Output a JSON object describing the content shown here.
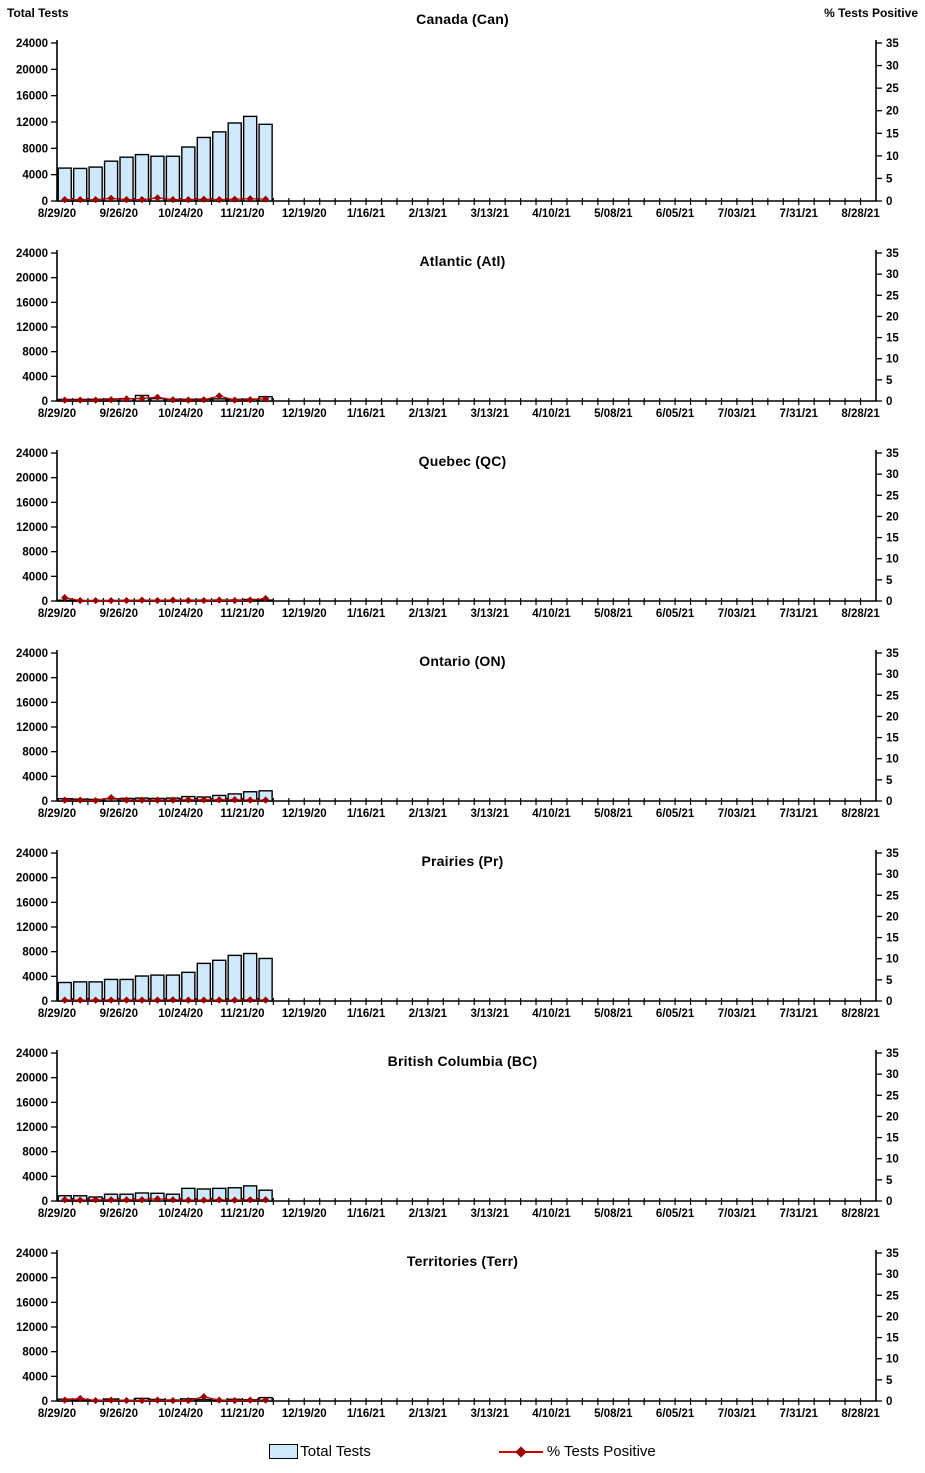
{
  "axes": {
    "left_label": "Total Tests",
    "right_label": "% Tests Positive",
    "left_ticks": [
      0,
      4000,
      8000,
      12000,
      16000,
      20000,
      24000
    ],
    "right_ticks": [
      0,
      5,
      10,
      15,
      20,
      25,
      30,
      35
    ],
    "left_max": 24000,
    "right_max": 35,
    "x_tick_labels": [
      "8/29/20",
      "9/26/20",
      "10/24/20",
      "11/21/20",
      "12/19/20",
      "1/16/21",
      "2/13/21",
      "3/13/21",
      "4/10/21",
      "5/08/21",
      "6/05/21",
      "7/03/21",
      "7/31/21",
      "8/28/21"
    ],
    "minor_tick_interval_weeks": 1,
    "label_interval_weeks": 4,
    "total_weeks_span": 53,
    "grid": "off"
  },
  "legend": {
    "total_tests": "Total Tests",
    "pct_positive": "% Tests Positive",
    "position": "bottom-center"
  },
  "colors": {
    "bar_fill": "#CDE9FA",
    "bar_border": "#000000",
    "line": "#CC0000",
    "marker": "#A00000",
    "axis": "#000000",
    "text": "#000000"
  },
  "chart_data": [
    {
      "type": "bar+line",
      "title": "Canada (Can)",
      "xlabel": "",
      "ylabel_left": "Total Tests",
      "ylabel_right": "% Tests Positive",
      "ylim_left": [
        0,
        24000
      ],
      "ylim_right": [
        0,
        35
      ],
      "categories": [
        "8/29/20",
        "9/05/20",
        "9/12/20",
        "9/19/20",
        "9/26/20",
        "10/03/20",
        "10/10/20",
        "10/17/20",
        "10/24/20",
        "10/31/20",
        "11/07/20",
        "11/14/20",
        "11/21/20",
        "11/28/20"
      ],
      "series": [
        {
          "name": "Total Tests",
          "axis": "left",
          "style": "bar",
          "values": [
            5000,
            4950,
            5150,
            6050,
            6650,
            7050,
            6800,
            6800,
            8200,
            9650,
            10500,
            11850,
            12850,
            11650
          ]
        },
        {
          "name": "% Tests Positive",
          "axis": "right",
          "style": "line-diamond",
          "values": [
            0.3,
            0.3,
            0.3,
            0.6,
            0.3,
            0.3,
            0.7,
            0.3,
            0.3,
            0.4,
            0.3,
            0.4,
            0.5,
            0.4
          ]
        }
      ]
    },
    {
      "type": "bar+line",
      "title": "Atlantic (Atl)",
      "xlabel": "",
      "ylabel_left": "Total Tests",
      "ylabel_right": "% Tests Positive",
      "ylim_left": [
        0,
        24000
      ],
      "ylim_right": [
        0,
        35
      ],
      "categories": [
        "8/29/20",
        "9/05/20",
        "9/12/20",
        "9/19/20",
        "9/26/20",
        "10/03/20",
        "10/10/20",
        "10/17/20",
        "10/24/20",
        "10/31/20",
        "11/07/20",
        "11/14/20",
        "11/21/20",
        "11/28/20"
      ],
      "series": [
        {
          "name": "Total Tests",
          "axis": "left",
          "style": "bar",
          "values": [
            250,
            250,
            280,
            320,
            380,
            900,
            400,
            300,
            280,
            300,
            350,
            280,
            300,
            700
          ]
        },
        {
          "name": "% Tests Positive",
          "axis": "right",
          "style": "line-diamond",
          "values": [
            0.2,
            0.2,
            0.2,
            0.3,
            0.5,
            0.6,
            0.9,
            0.3,
            0.2,
            0.3,
            1.2,
            0.2,
            0.3,
            0.5
          ]
        }
      ]
    },
    {
      "type": "bar+line",
      "title": "Quebec (QC)",
      "xlabel": "",
      "ylabel_left": "Total Tests",
      "ylabel_right": "% Tests Positive",
      "ylim_left": [
        0,
        24000
      ],
      "ylim_right": [
        0,
        35
      ],
      "categories": [
        "8/29/20",
        "9/05/20",
        "9/12/20",
        "9/19/20",
        "9/26/20",
        "10/03/20",
        "10/10/20",
        "10/17/20",
        "10/24/20",
        "10/31/20",
        "11/07/20",
        "11/14/20",
        "11/21/20",
        "11/28/20"
      ],
      "series": [
        {
          "name": "Total Tests",
          "axis": "left",
          "style": "bar",
          "values": [
            120,
            80,
            80,
            80,
            100,
            100,
            100,
            120,
            120,
            130,
            150,
            150,
            250,
            150
          ]
        },
        {
          "name": "% Tests Positive",
          "axis": "right",
          "style": "line-diamond",
          "values": [
            0.8,
            0.1,
            0.1,
            0.1,
            0.1,
            0.2,
            0.1,
            0.2,
            0.1,
            0.1,
            0.2,
            0.1,
            0.2,
            0.6
          ]
        }
      ]
    },
    {
      "type": "bar+line",
      "title": "Ontario (ON)",
      "xlabel": "",
      "ylabel_left": "Total Tests",
      "ylabel_right": "% Tests Positive",
      "ylim_left": [
        0,
        24000
      ],
      "ylim_right": [
        0,
        35
      ],
      "categories": [
        "8/29/20",
        "9/05/20",
        "9/12/20",
        "9/19/20",
        "9/26/20",
        "10/03/20",
        "10/10/20",
        "10/17/20",
        "10/24/20",
        "10/31/20",
        "11/07/20",
        "11/14/20",
        "11/21/20",
        "11/28/20"
      ],
      "series": [
        {
          "name": "Total Tests",
          "axis": "left",
          "style": "bar",
          "values": [
            380,
            300,
            260,
            350,
            420,
            470,
            420,
            470,
            720,
            650,
            900,
            1150,
            1500,
            1650
          ]
        },
        {
          "name": "% Tests Positive",
          "axis": "right",
          "style": "line-diamond",
          "values": [
            0.2,
            0.2,
            0.1,
            0.8,
            0.2,
            0.2,
            0.2,
            0.2,
            0.3,
            0.3,
            0.3,
            0.3,
            0.2,
            0.2
          ]
        }
      ]
    },
    {
      "type": "bar+line",
      "title": "Prairies (Pr)",
      "xlabel": "",
      "ylabel_left": "Total Tests",
      "ylabel_right": "% Tests Positive",
      "ylim_left": [
        0,
        24000
      ],
      "ylim_right": [
        0,
        35
      ],
      "categories": [
        "8/29/20",
        "9/05/20",
        "9/12/20",
        "9/19/20",
        "9/26/20",
        "10/03/20",
        "10/10/20",
        "10/17/20",
        "10/24/20",
        "10/31/20",
        "11/07/20",
        "11/14/20",
        "11/21/20",
        "11/28/20"
      ],
      "series": [
        {
          "name": "Total Tests",
          "axis": "left",
          "style": "bar",
          "values": [
            3000,
            3100,
            3100,
            3500,
            3500,
            4050,
            4200,
            4200,
            4650,
            6100,
            6600,
            7400,
            7700,
            6900
          ]
        },
        {
          "name": "% Tests Positive",
          "axis": "right",
          "style": "line-diamond",
          "values": [
            0.2,
            0.2,
            0.2,
            0.2,
            0.2,
            0.2,
            0.2,
            0.3,
            0.2,
            0.2,
            0.2,
            0.2,
            0.3,
            0.2
          ]
        }
      ]
    },
    {
      "type": "bar+line",
      "title": "British Columbia (BC)",
      "xlabel": "",
      "ylabel_left": "Total Tests",
      "ylabel_right": "% Tests Positive",
      "ylim_left": [
        0,
        24000
      ],
      "ylim_right": [
        0,
        35
      ],
      "categories": [
        "8/29/20",
        "9/05/20",
        "9/12/20",
        "9/19/20",
        "9/26/20",
        "10/03/20",
        "10/10/20",
        "10/17/20",
        "10/24/20",
        "10/31/20",
        "11/07/20",
        "11/14/20",
        "11/21/20",
        "11/28/20"
      ],
      "series": [
        {
          "name": "Total Tests",
          "axis": "left",
          "style": "bar",
          "values": [
            850,
            850,
            650,
            1100,
            1100,
            1300,
            1250,
            1100,
            2050,
            1950,
            2050,
            2150,
            2450,
            1750
          ]
        },
        {
          "name": "% Tests Positive",
          "axis": "right",
          "style": "line-diamond",
          "values": [
            0.3,
            0.2,
            0.3,
            0.3,
            0.3,
            0.3,
            0.5,
            0.3,
            0.2,
            0.2,
            0.3,
            0.2,
            0.3,
            0.3
          ]
        }
      ]
    },
    {
      "type": "bar+line",
      "title": "Territories (Terr)",
      "xlabel": "",
      "ylabel_left": "Total Tests",
      "ylabel_right": "% Tests Positive",
      "ylim_left": [
        0,
        24000
      ],
      "ylim_right": [
        0,
        35
      ],
      "categories": [
        "8/29/20",
        "9/05/20",
        "9/12/20",
        "9/19/20",
        "9/26/20",
        "10/03/20",
        "10/10/20",
        "10/17/20",
        "10/24/20",
        "10/31/20",
        "11/07/20",
        "11/14/20",
        "11/21/20",
        "11/28/20"
      ],
      "series": [
        {
          "name": "Total Tests",
          "axis": "left",
          "style": "bar",
          "values": [
            300,
            120,
            120,
            320,
            100,
            420,
            250,
            150,
            350,
            250,
            100,
            280,
            200,
            550
          ]
        },
        {
          "name": "% Tests Positive",
          "axis": "right",
          "style": "line-diamond",
          "values": [
            0.2,
            0.6,
            0.1,
            0.2,
            0.1,
            0.1,
            0.2,
            0.1,
            0.1,
            1.0,
            0.2,
            0.1,
            0.2,
            0.2
          ]
        }
      ]
    }
  ]
}
